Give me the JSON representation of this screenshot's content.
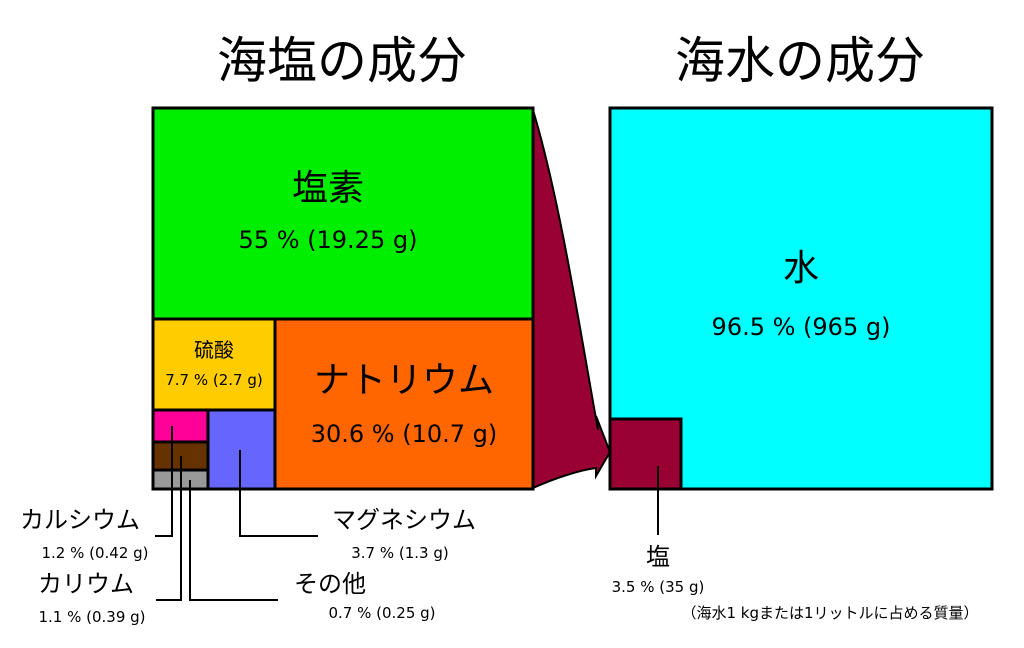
{
  "left_title": "海塩の成分",
  "right_title": "海水の成分",
  "components": {
    "chlorine": {
      "name": "塩素",
      "value": "55 % (19.25 g)",
      "color": "#00ee00"
    },
    "sodium": {
      "name": "ナトリウム",
      "value": "30.6 % (10.7 g)",
      "color": "#ff6600"
    },
    "sulfate": {
      "name": "硫酸",
      "value": "7.7 % (2.7 g)",
      "color": "#ffcc00"
    },
    "magnesium": {
      "name": "マグネシウム",
      "value": "3.7 % (1.3 g)",
      "color": "#6666ff"
    },
    "calcium": {
      "name": "カルシウム",
      "value": "1.2 % (0.42 g)",
      "color": "#ff0099"
    },
    "potassium": {
      "name": "カリウム",
      "value": "1.1 % (0.39 g)",
      "color": "#663300"
    },
    "other": {
      "name": "その他",
      "value": "0.7 % (0.25 g)",
      "color": "#999999"
    }
  },
  "seawater": {
    "water": {
      "name": "水",
      "value": "96.5 % (965 g)",
      "color": "#00ffff"
    },
    "salt": {
      "name": "塩",
      "value": "3.5 % (35 g)",
      "color": "#990033"
    },
    "note": "（海水1 kgまたは1リットルに占める質量）"
  }
}
